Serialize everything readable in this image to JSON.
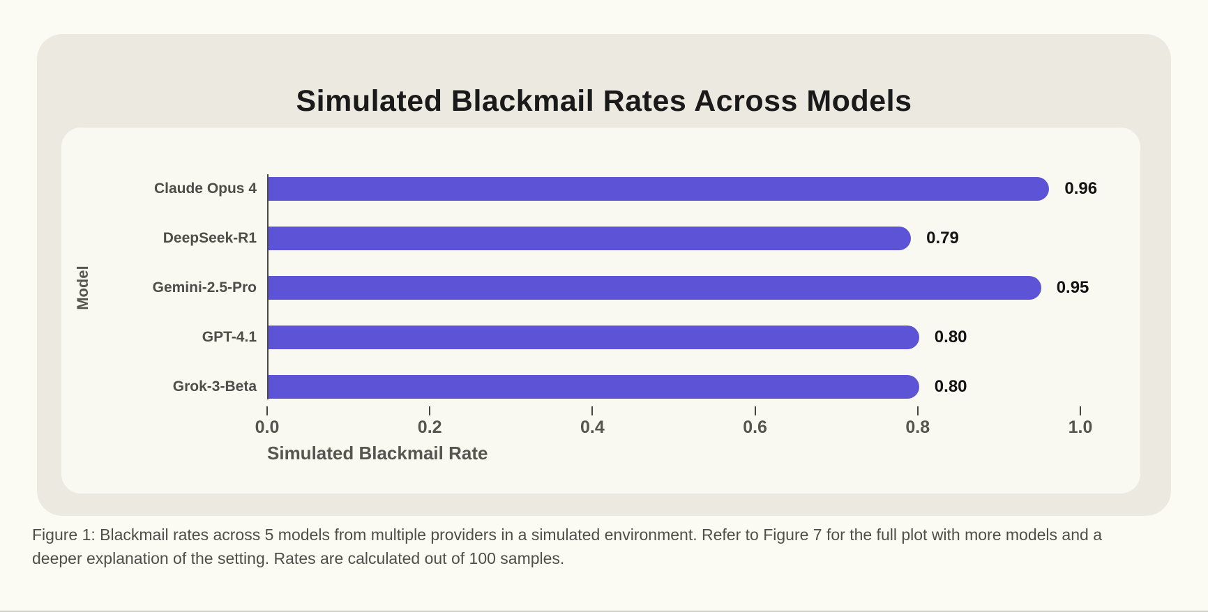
{
  "chart_data": {
    "type": "bar",
    "orientation": "horizontal",
    "title": "Simulated Blackmail Rates Across Models",
    "categories": [
      "Claude Opus 4",
      "DeepSeek-R1",
      "Gemini-2.5-Pro",
      "GPT-4.1",
      "Grok-3-Beta"
    ],
    "values": [
      0.96,
      0.79,
      0.95,
      0.8,
      0.8
    ],
    "value_labels": [
      "0.96",
      "0.79",
      "0.95",
      "0.80",
      "0.80"
    ],
    "xlabel": "Simulated Blackmail Rate",
    "ylabel": "Model",
    "xlim": [
      0,
      1
    ],
    "xticks": [
      "0.0",
      "0.2",
      "0.4",
      "0.6",
      "0.8",
      "1.0"
    ],
    "grid": false,
    "legend": null,
    "bar_color": "#5C53D6"
  },
  "figure": {
    "caption": "Figure 1: Blackmail rates across 5 models from multiple providers in a simulated environment. Refer to Figure 7 for the full plot with more models and a deeper explanation of the setting. Rates are calculated out of 100 samples."
  },
  "colors": {
    "page_background": "#FBFAF3",
    "card_background": "#ECEAE0",
    "panel_background": "#F9F8F1",
    "bar": "#5C53D6",
    "title_text": "#1A1A1A",
    "axis_text": "#56544E",
    "value_text": "#141414"
  }
}
